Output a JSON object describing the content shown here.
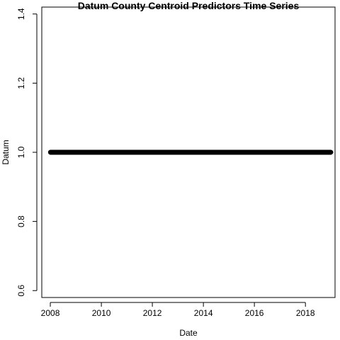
{
  "chart_data": {
    "type": "scatter",
    "title": "Datum County Centroid Predictors Time Series",
    "xlabel": "Date",
    "ylabel": "Datum",
    "xlim": [
      "2007-09-01",
      "2019-03-01"
    ],
    "ylim": [
      0.58,
      1.42
    ],
    "xticks": [
      "2008",
      "2010",
      "2012",
      "2014",
      "2016",
      "2018"
    ],
    "yticks": [
      "0.6",
      "0.8",
      "1.0",
      "1.2",
      "1.4"
    ],
    "grid": false,
    "legend": "none",
    "series": [
      {
        "x_range": [
          "2008-01-01",
          "2019-01-01"
        ],
        "frequency": "daily",
        "y": 1.0
      }
    ],
    "colors": {
      "points": "#000000"
    }
  }
}
